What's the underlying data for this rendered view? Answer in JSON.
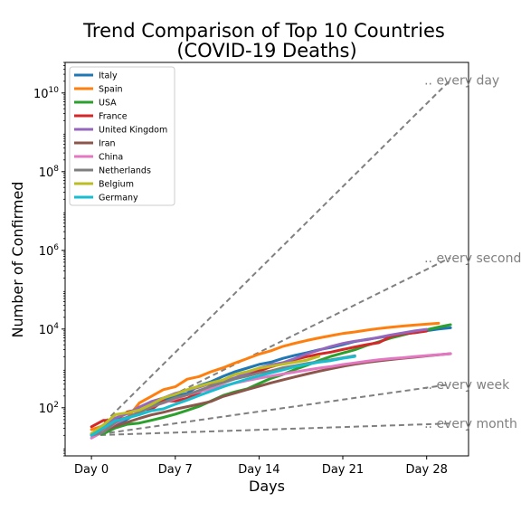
{
  "chart_data": {
    "type": "line",
    "title": "Trend Comparison of Top 10 Countries",
    "subtitle": "(COVID-19 Deaths)",
    "xlabel": "Days",
    "ylabel": "Number of Confirmed",
    "y_scale": "log",
    "xlim": [
      -2.2,
      31.5
    ],
    "ylim": [
      6,
      60000000000
    ],
    "x_ticks": [
      {
        "value": 0,
        "label": "Day 0"
      },
      {
        "value": 7,
        "label": "Day 7"
      },
      {
        "value": 14,
        "label": "Day 14"
      },
      {
        "value": 21,
        "label": "Day 21"
      },
      {
        "value": 28,
        "label": "Day 28"
      }
    ],
    "y_ticks": [
      {
        "value": 100,
        "base": "10",
        "exp": "2"
      },
      {
        "value": 10000,
        "base": "10",
        "exp": "4"
      },
      {
        "value": 1000000,
        "base": "10",
        "exp": "6"
      },
      {
        "value": 100000000,
        "base": "10",
        "exp": "8"
      },
      {
        "value": 10000000000,
        "base": "10",
        "exp": "10"
      }
    ],
    "grid": false,
    "legend_position": "top-left",
    "series": [
      {
        "name": "Italy",
        "color": "#1f77b4",
        "x": [
          0,
          1,
          2,
          3,
          4,
          5,
          6,
          7,
          8,
          9,
          10,
          11,
          12,
          13,
          14,
          15,
          16,
          17,
          18,
          19,
          20,
          21,
          22,
          23,
          24,
          25,
          26,
          27,
          28,
          29,
          30
        ],
        "y": [
          21,
          29,
          34,
          52,
          79,
          107,
          148,
          197,
          233,
          366,
          463,
          631,
          827,
          1016,
          1266,
          1441,
          1809,
          2158,
          2503,
          2978,
          3405,
          4032,
          4825,
          5476,
          6077,
          6820,
          7503,
          8165,
          9134,
          10023,
          10779
        ]
      },
      {
        "name": "Spain",
        "color": "#ff7f0e",
        "x": [
          0,
          1,
          2,
          3,
          4,
          5,
          6,
          7,
          8,
          9,
          10,
          11,
          12,
          13,
          14,
          15,
          16,
          17,
          18,
          19,
          20,
          21,
          22,
          23,
          24,
          25,
          26,
          27,
          28,
          29
        ],
        "y": [
          28,
          35,
          54,
          55,
          133,
          195,
          289,
          342,
          533,
          623,
          830,
          1043,
          1375,
          1772,
          2311,
          2808,
          3647,
          4365,
          5138,
          5982,
          6803,
          7716,
          8464,
          9387,
          10348,
          11198,
          11947,
          12641,
          13341,
          14045
        ]
      },
      {
        "name": "USA",
        "color": "#2ca02c",
        "x": [
          0,
          1,
          2,
          3,
          4,
          5,
          6,
          7,
          8,
          9,
          10,
          11,
          12,
          13,
          14,
          15,
          16,
          17,
          18,
          19,
          20,
          21,
          22,
          23,
          24,
          25,
          26,
          27,
          28,
          29,
          30
        ],
        "y": [
          21,
          22,
          31,
          38,
          41,
          48,
          57,
          69,
          86,
          109,
          150,
          206,
          255,
          301,
          414,
          559,
          706,
          942,
          1209,
          1581,
          2026,
          2467,
          2978,
          3873,
          4757,
          5926,
          7087,
          8407,
          9619,
          11248,
          12911
        ]
      },
      {
        "name": "France",
        "color": "#d62728",
        "x": [
          0,
          1,
          2,
          3,
          4,
          5,
          6,
          7,
          8,
          9,
          10,
          11,
          12,
          13,
          14,
          15,
          16,
          17,
          18,
          19,
          20,
          21,
          22,
          23,
          24,
          25,
          26,
          27,
          28
        ],
        "y": [
          33,
          48,
          48,
          79,
          91,
          91,
          148,
          148,
          175,
          244,
          372,
          450,
          562,
          674,
          860,
          1100,
          1331,
          1696,
          1995,
          2314,
          2606,
          3024,
          3523,
          4032,
          4503,
          6507,
          7560,
          8078,
          8911
        ]
      },
      {
        "name": "United Kingdom",
        "color": "#9467bd",
        "x": [
          0,
          1,
          2,
          3,
          4,
          5,
          6,
          7,
          8,
          9,
          10,
          11,
          12,
          13,
          14,
          15,
          16,
          17,
          18,
          19,
          20,
          21,
          22,
          23,
          24,
          25,
          26,
          27,
          28
        ],
        "y": [
          21,
          35,
          55,
          71,
          104,
          144,
          177,
          233,
          281,
          335,
          422,
          465,
          578,
          759,
          1019,
          1228,
          1408,
          1789,
          2352,
          2921,
          3605,
          4313,
          4934,
          5373,
          6159,
          7097,
          7978,
          8958,
          9875
        ]
      },
      {
        "name": "Iran",
        "color": "#8c564b",
        "x": [
          0,
          1,
          2,
          3,
          4,
          5,
          6,
          7,
          8,
          9,
          10,
          11,
          12,
          13,
          14,
          15,
          16,
          17,
          18,
          19,
          20,
          21,
          22,
          23,
          24,
          25,
          26,
          27,
          28,
          29,
          30
        ],
        "y": [
          22,
          26,
          34,
          43,
          54,
          66,
          77,
          92,
          107,
          124,
          145,
          194,
          237,
          291,
          354,
          429,
          514,
          611,
          724,
          853,
          988,
          1135,
          1284,
          1433,
          1556,
          1685,
          1812,
          1934,
          2077,
          2234,
          2378
        ]
      },
      {
        "name": "China",
        "color": "#e377c2",
        "x": [
          0,
          1,
          2,
          3,
          4,
          5,
          6,
          7,
          8,
          9,
          10,
          11,
          12,
          13,
          14,
          15,
          16,
          17,
          18,
          19,
          20,
          21,
          22,
          23,
          24,
          25,
          26,
          27,
          28,
          29,
          30
        ],
        "y": [
          17,
          25,
          41,
          56,
          80,
          106,
          132,
          170,
          213,
          259,
          304,
          362,
          426,
          492,
          565,
          638,
          724,
          813,
          910,
          1018,
          1115,
          1261,
          1383,
          1526,
          1669,
          1775,
          1873,
          2009,
          2126,
          2247,
          2360
        ]
      },
      {
        "name": "Netherlands",
        "color": "#7f7f7f",
        "x": [
          0,
          1,
          2,
          3,
          4,
          5,
          6,
          7,
          8,
          9,
          10,
          11,
          12,
          13,
          14,
          15,
          16,
          17,
          18,
          19,
          20,
          21,
          22
        ],
        "y": [
          20,
          24,
          43,
          58,
          76,
          106,
          136,
          179,
          213,
          276,
          356,
          434,
          546,
          639,
          771,
          864,
          1039,
          1173,
          1339,
          1487,
          1651,
          1867,
          2101
        ]
      },
      {
        "name": "Belgium",
        "color": "#bcbd22",
        "x": [
          0,
          1,
          2,
          3,
          4,
          5,
          6,
          7,
          8,
          9,
          10,
          11,
          12,
          13,
          14,
          15,
          16,
          17,
          18,
          19
        ],
        "y": [
          22,
          37,
          67,
          75,
          88,
          122,
          178,
          220,
          289,
          353,
          431,
          513,
          705,
          828,
          1011,
          1143,
          1283,
          1447,
          1632,
          2035
        ]
      },
      {
        "name": "Germany",
        "color": "#17becf",
        "x": [
          0,
          1,
          2,
          3,
          4,
          5,
          6,
          7,
          8,
          9,
          10,
          11,
          12,
          13,
          14,
          15,
          16,
          17,
          18,
          19,
          20,
          21,
          22
        ],
        "y": [
          20,
          31,
          47,
          55,
          67,
          84,
          94,
          123,
          157,
          206,
          267,
          342,
          433,
          533,
          645,
          775,
          920,
          1107,
          1275,
          1444,
          1584,
          1810,
          2016
        ]
      }
    ],
    "reference_lines": [
      {
        "label": ".. every day",
        "start": [
          0,
          20
        ],
        "end": [
          30,
          21474836480
        ]
      },
      {
        "label": ".. every second",
        "start": [
          0,
          20
        ],
        "end": [
          30,
          655360
        ]
      },
      {
        "label": ".. every week",
        "start": [
          0,
          20
        ],
        "end": [
          30,
          394
        ]
      },
      {
        "label": ".. every month",
        "start": [
          0,
          20
        ],
        "end": [
          30,
          40
        ]
      }
    ]
  }
}
